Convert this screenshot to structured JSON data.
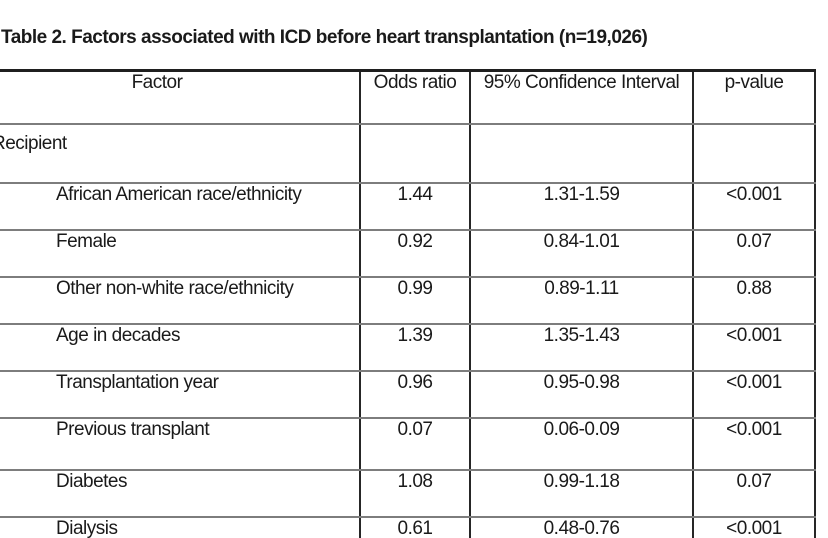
{
  "title": "Table 2. Factors associated with ICD before heart transplantation (n=19,026)",
  "table": {
    "columns": [
      "Factor",
      "Odds ratio",
      "95% Confidence Interval",
      "p-value"
    ],
    "rows": [
      {
        "factor": "Recipient",
        "level": 1,
        "odds_ratio": "",
        "confidence_interval": "",
        "p_value": ""
      },
      {
        "factor": "African American race/ethnicity",
        "level": 2,
        "odds_ratio": "1.44",
        "confidence_interval": "1.31-1.59",
        "p_value": "<0.001"
      },
      {
        "factor": "Female",
        "level": 2,
        "odds_ratio": "0.92",
        "confidence_interval": "0.84-1.01",
        "p_value": "0.07"
      },
      {
        "factor": "Other non-white race/ethnicity",
        "level": 2,
        "odds_ratio": "0.99",
        "confidence_interval": "0.89-1.11",
        "p_value": "0.88"
      },
      {
        "factor": "Age in decades",
        "level": 2,
        "odds_ratio": "1.39",
        "confidence_interval": "1.35-1.43",
        "p_value": "<0.001"
      },
      {
        "factor": "Transplantation year",
        "level": 2,
        "odds_ratio": "0.96",
        "confidence_interval": "0.95-0.98",
        "p_value": "<0.001"
      },
      {
        "factor": "Previous transplant",
        "level": 2,
        "odds_ratio": "0.07",
        "confidence_interval": "0.06-0.09",
        "p_value": "<0.001"
      },
      {
        "factor": "Diabetes",
        "level": 2,
        "odds_ratio": "1.08",
        "confidence_interval": "0.99-1.18",
        "p_value": "0.07"
      },
      {
        "factor": "Dialysis",
        "level": 2,
        "odds_ratio": "0.61",
        "confidence_interval": "0.48-0.76",
        "p_value": "<0.001"
      }
    ]
  },
  "colors": {
    "text": "#1a1a1a",
    "border_heavy": "#1f1f1f",
    "border_vertical": "#262626",
    "row_separator": "#7d7d7d",
    "background": "#ffffff"
  }
}
